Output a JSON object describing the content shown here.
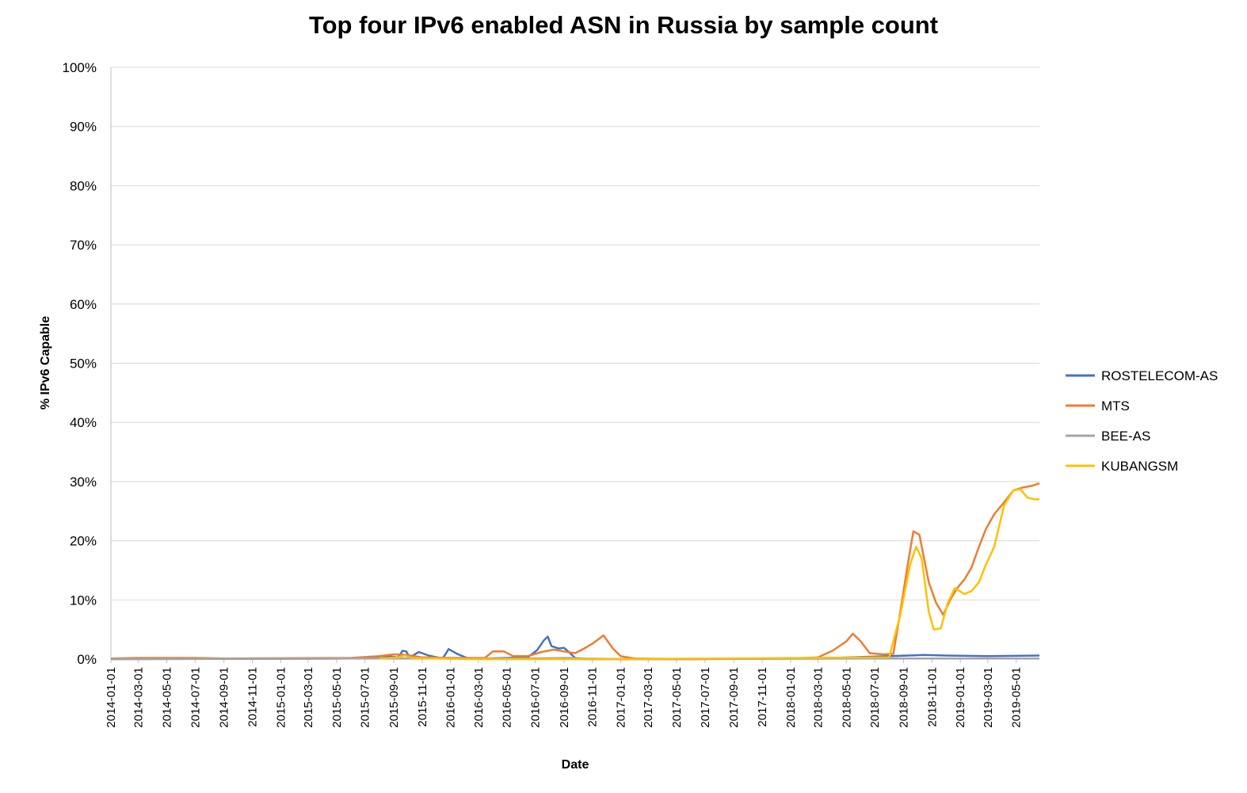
{
  "chart_data": {
    "type": "line",
    "title": "Top four IPv6 enabled ASN in Russia by sample count",
    "xlabel": "Date",
    "ylabel": "% IPv6 Capable",
    "ylim": [
      0,
      100
    ],
    "xlim": [
      "2014-01-01",
      "2019-06-20"
    ],
    "y_ticks": [
      "0%",
      "10%",
      "20%",
      "30%",
      "40%",
      "50%",
      "60%",
      "70%",
      "80%",
      "90%",
      "100%"
    ],
    "x_ticks": [
      "2014-01-01",
      "2014-03-01",
      "2014-05-01",
      "2014-07-01",
      "2014-09-01",
      "2014-11-01",
      "2015-01-01",
      "2015-03-01",
      "2015-05-01",
      "2015-07-01",
      "2015-09-01",
      "2015-11-01",
      "2016-01-01",
      "2016-03-01",
      "2016-05-01",
      "2016-07-01",
      "2016-09-01",
      "2016-11-01",
      "2017-01-01",
      "2017-03-01",
      "2017-05-01",
      "2017-07-01",
      "2017-09-01",
      "2017-11-01",
      "2018-01-01",
      "2018-03-01",
      "2018-05-01",
      "2018-07-01",
      "2018-09-01",
      "2018-11-01",
      "2019-01-01",
      "2019-03-01",
      "2019-05-01"
    ],
    "grid": true,
    "legend": "right",
    "series": [
      {
        "name": "ROSTELECOM-AS",
        "color": "#4472C4",
        "points": [
          [
            "2014-01-01",
            0
          ],
          [
            "2015-06-01",
            0.1
          ],
          [
            "2015-07-15",
            0.4
          ],
          [
            "2015-08-15",
            0.5
          ],
          [
            "2015-09-10",
            0.3
          ],
          [
            "2015-09-20",
            1.4
          ],
          [
            "2015-09-28",
            1.3
          ],
          [
            "2015-10-05",
            0.3
          ],
          [
            "2015-10-25",
            1.2
          ],
          [
            "2015-11-15",
            0.6
          ],
          [
            "2015-12-15",
            0.1
          ],
          [
            "2015-12-28",
            1.7
          ],
          [
            "2016-01-15",
            0.9
          ],
          [
            "2016-02-05",
            0.2
          ],
          [
            "2016-03-15",
            0.1
          ],
          [
            "2016-06-15",
            0.3
          ],
          [
            "2016-07-05",
            1.5
          ],
          [
            "2016-07-20",
            3.2
          ],
          [
            "2016-07-28",
            3.8
          ],
          [
            "2016-08-05",
            2.2
          ],
          [
            "2016-08-20",
            1.8
          ],
          [
            "2016-09-01",
            1.9
          ],
          [
            "2016-09-10",
            1.3
          ],
          [
            "2016-09-25",
            0.2
          ],
          [
            "2016-10-15",
            0
          ],
          [
            "2017-06-01",
            0
          ],
          [
            "2018-01-01",
            0.1
          ],
          [
            "2018-04-01",
            0.2
          ],
          [
            "2018-08-01",
            0.5
          ],
          [
            "2018-10-15",
            0.7
          ],
          [
            "2018-12-01",
            0.6
          ],
          [
            "2019-03-01",
            0.5
          ],
          [
            "2019-06-20",
            0.6
          ]
        ]
      },
      {
        "name": "MTS",
        "color": "#ED7D31",
        "points": [
          [
            "2014-01-01",
            0.1
          ],
          [
            "2014-03-01",
            0.2
          ],
          [
            "2014-05-01",
            0.2
          ],
          [
            "2014-07-01",
            0.2
          ],
          [
            "2014-09-01",
            0.1
          ],
          [
            "2015-06-01",
            0.2
          ],
          [
            "2015-08-01",
            0.5
          ],
          [
            "2015-09-01",
            0.8
          ],
          [
            "2015-10-01",
            0.7
          ],
          [
            "2015-11-01",
            0.3
          ],
          [
            "2016-01-01",
            0.2
          ],
          [
            "2016-03-15",
            0.2
          ],
          [
            "2016-04-01",
            1.3
          ],
          [
            "2016-04-25",
            1.3
          ],
          [
            "2016-05-15",
            0.5
          ],
          [
            "2016-06-15",
            0.5
          ],
          [
            "2016-07-15",
            1.2
          ],
          [
            "2016-08-10",
            1.6
          ],
          [
            "2016-09-01",
            1.3
          ],
          [
            "2016-09-25",
            1.0
          ],
          [
            "2016-10-10",
            1.6
          ],
          [
            "2016-11-01",
            2.6
          ],
          [
            "2016-11-25",
            4.0
          ],
          [
            "2016-12-15",
            1.8
          ],
          [
            "2017-01-01",
            0.5
          ],
          [
            "2017-02-01",
            0.1
          ],
          [
            "2017-06-01",
            0
          ],
          [
            "2018-01-01",
            0.1
          ],
          [
            "2018-03-01",
            0.3
          ],
          [
            "2018-04-01",
            1.4
          ],
          [
            "2018-05-01",
            3.0
          ],
          [
            "2018-05-15",
            4.3
          ],
          [
            "2018-06-01",
            3.0
          ],
          [
            "2018-06-20",
            1.0
          ],
          [
            "2018-07-20",
            0.8
          ],
          [
            "2018-08-10",
            0.9
          ],
          [
            "2018-08-25",
            8.0
          ],
          [
            "2018-09-10",
            16.0
          ],
          [
            "2018-09-22",
            21.6
          ],
          [
            "2018-10-05",
            21.0
          ],
          [
            "2018-10-25",
            13.0
          ],
          [
            "2018-11-10",
            9.5
          ],
          [
            "2018-11-25",
            7.5
          ],
          [
            "2018-12-10",
            10.0
          ],
          [
            "2018-12-25",
            12.0
          ],
          [
            "2019-01-10",
            13.5
          ],
          [
            "2019-01-25",
            15.5
          ],
          [
            "2019-02-10",
            19.0
          ],
          [
            "2019-02-25",
            22.0
          ],
          [
            "2019-03-15",
            24.5
          ],
          [
            "2019-04-05",
            26.5
          ],
          [
            "2019-04-25",
            28.5
          ],
          [
            "2019-05-15",
            29.0
          ],
          [
            "2019-06-05",
            29.3
          ],
          [
            "2019-06-20",
            29.7
          ]
        ]
      },
      {
        "name": "BEE-AS",
        "color": "#A5A5A5",
        "points": [
          [
            "2014-01-01",
            0
          ],
          [
            "2015-06-01",
            0.1
          ],
          [
            "2015-12-01",
            0.1
          ],
          [
            "2016-06-01",
            0.1
          ],
          [
            "2016-09-15",
            0.2
          ],
          [
            "2016-10-15",
            0.1
          ],
          [
            "2017-02-01",
            0
          ],
          [
            "2018-06-01",
            0.1
          ],
          [
            "2018-09-01",
            0.1
          ],
          [
            "2019-06-20",
            0.1
          ]
        ]
      },
      {
        "name": "KUBANGSM",
        "color": "#FFC000",
        "points": [
          [
            "2015-08-01",
            0.1
          ],
          [
            "2015-09-10",
            0.3
          ],
          [
            "2015-09-25",
            0.6
          ],
          [
            "2015-10-10",
            0.2
          ],
          [
            "2015-12-01",
            0.1
          ],
          [
            "2016-02-01",
            0
          ],
          [
            "2017-01-01",
            0
          ],
          [
            "2018-08-01",
            0.3
          ],
          [
            "2018-08-25",
            7.5
          ],
          [
            "2018-09-15",
            16.0
          ],
          [
            "2018-09-28",
            19.0
          ],
          [
            "2018-10-10",
            17.0
          ],
          [
            "2018-10-25",
            8.0
          ],
          [
            "2018-11-05",
            5.0
          ],
          [
            "2018-11-20",
            5.2
          ],
          [
            "2018-12-05",
            9.5
          ],
          [
            "2018-12-20",
            12.0
          ],
          [
            "2019-01-10",
            11.0
          ],
          [
            "2019-01-25",
            11.5
          ],
          [
            "2019-02-10",
            13.0
          ],
          [
            "2019-02-25",
            16.0
          ],
          [
            "2019-03-15",
            19.0
          ],
          [
            "2019-04-05",
            26.0
          ],
          [
            "2019-04-25",
            28.5
          ],
          [
            "2019-05-10",
            28.7
          ],
          [
            "2019-05-25",
            27.3
          ],
          [
            "2019-06-10",
            27.0
          ],
          [
            "2019-06-20",
            27.0
          ]
        ]
      }
    ]
  }
}
